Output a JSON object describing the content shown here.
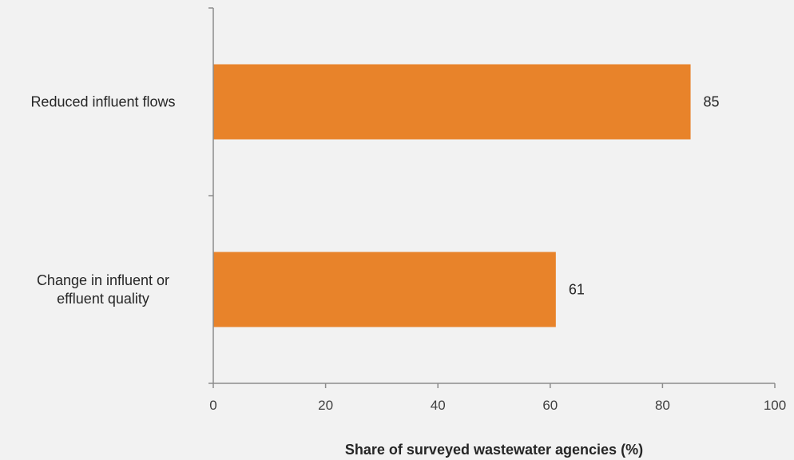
{
  "chart_data": {
    "type": "bar",
    "orientation": "horizontal",
    "title": "",
    "xlabel": "Share of surveyed wastewater agencies (%)",
    "ylabel": "",
    "categories": [
      "Reduced influent flows",
      "Change in influent or effluent quality"
    ],
    "category_lines": [
      [
        "Reduced influent flows"
      ],
      [
        "Change in influent or",
        "effluent quality"
      ]
    ],
    "values": [
      85,
      61
    ],
    "data_labels": [
      "85",
      "61"
    ],
    "xlim": [
      0,
      100
    ],
    "xticks": [
      0,
      20,
      40,
      60,
      80,
      100
    ],
    "xtick_labels": [
      "0",
      "20",
      "40",
      "60",
      "80",
      "100"
    ],
    "grid": false,
    "legend": "none",
    "bar_color": "#e8832a",
    "axis_color": "#8c8c8c",
    "background": "#f2f2f2"
  }
}
